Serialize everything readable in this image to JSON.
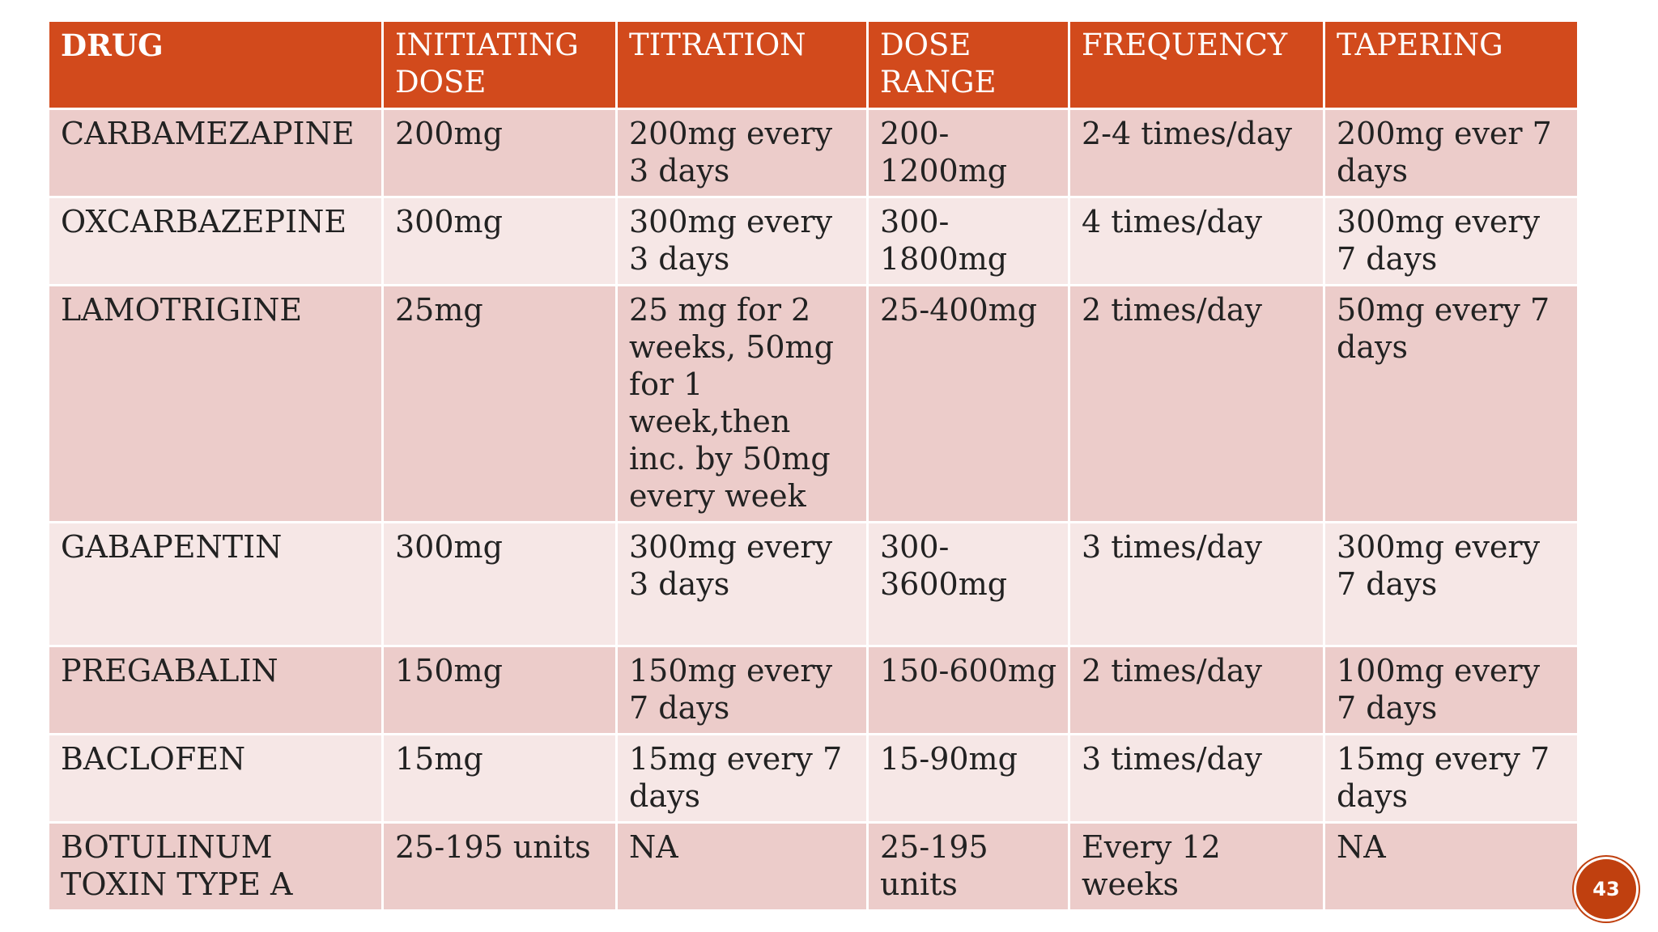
{
  "table": {
    "headers": [
      "DRUG",
      "INITIATING DOSE",
      "TITRATION",
      "DOSE RANGE",
      "FREQUENCY",
      "TAPERING"
    ],
    "rows": [
      [
        "CARBAMEZAPINE",
        "200mg",
        "200mg every 3 days",
        "200-1200mg",
        "2-4 times/day",
        "200mg ever 7 days"
      ],
      [
        "OXCARBAZEPINE",
        "300mg",
        "300mg every 3 days",
        "300-1800mg",
        "4 times/day",
        "300mg every 7 days"
      ],
      [
        "LAMOTRIGINE",
        "25mg",
        "25 mg for 2 weeks, 50mg for 1 week,then inc. by 50mg every week",
        "25-400mg",
        "2 times/day",
        "50mg every 7 days"
      ],
      [
        "GABAPENTIN",
        "300mg",
        "300mg every 3 days",
        "300-3600mg",
        "3 times/day",
        "300mg every 7 days"
      ],
      [
        "PREGABALIN",
        "150mg",
        "150mg every 7 days",
        "150-600mg",
        "2 times/day",
        "100mg every 7 days"
      ],
      [
        "BACLOFEN",
        "15mg",
        "15mg every 7 days",
        "15-90mg",
        "3 times/day",
        "15mg every 7 days"
      ],
      [
        "BOTULINUM TOXIN TYPE A",
        "25-195 units",
        "NA",
        "25-195 units",
        "Every 12 weeks",
        "NA"
      ]
    ]
  },
  "page_number": "43",
  "colors": {
    "header": "#d24a1c",
    "row_odd": "#ecccca",
    "row_even": "#f6e7e6",
    "badge": "#c0400f"
  }
}
